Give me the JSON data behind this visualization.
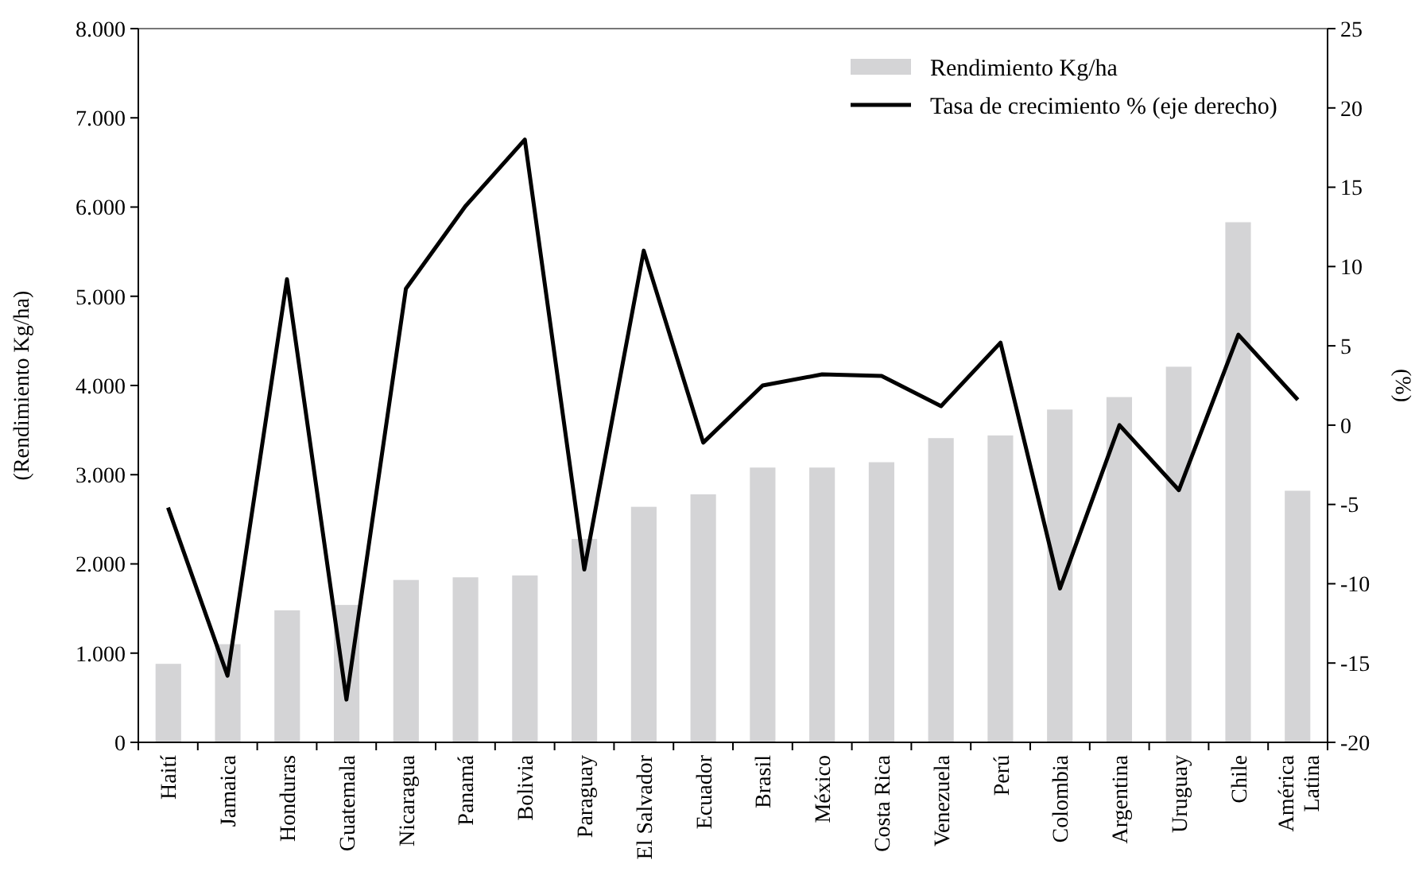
{
  "chart_data": {
    "type": "bar",
    "categories": [
      "Haití",
      "Jamaica",
      "Honduras",
      "Guatemala",
      "Nicaragua",
      "Panamá",
      "Bolivia",
      "Paraguay",
      "El Salvador",
      "Ecuador",
      "Brasil",
      "México",
      "Costa Rica",
      "Venezuela",
      "Perú",
      "Colombia",
      "Argentina",
      "Uruguay",
      "Chile",
      "América Latina"
    ],
    "series": [
      {
        "name": "Rendimiento Kg/ha",
        "color": "#d4d4d6",
        "values": [
          880,
          1100,
          1480,
          1540,
          1820,
          1850,
          1870,
          2280,
          2640,
          2780,
          3080,
          3080,
          3140,
          3410,
          3440,
          3730,
          3870,
          4210,
          5830,
          2820
        ]
      },
      {
        "name": "Tasa de crecimiento % (eje derecho)",
        "type": "line",
        "axis": "y2",
        "color": "#000000",
        "values": [
          -5.2,
          -15.8,
          9.2,
          -17.3,
          8.6,
          13.8,
          18.0,
          -9.1,
          11.0,
          -1.1,
          2.5,
          3.2,
          3.1,
          1.2,
          5.2,
          -10.3,
          0.0,
          -4.1,
          5.7,
          1.6
        ]
      }
    ],
    "ylabel": "(Rendimiento Kg/ha)",
    "y2label": "(%)",
    "ylim": [
      0,
      8000
    ],
    "yticks": [
      {
        "value": 0,
        "label": "0"
      },
      {
        "value": 1000,
        "label": "1.000"
      },
      {
        "value": 2000,
        "label": "2.000"
      },
      {
        "value": 3000,
        "label": "3.000"
      },
      {
        "value": 4000,
        "label": "4.000"
      },
      {
        "value": 5000,
        "label": "5.000"
      },
      {
        "value": 6000,
        "label": "6.000"
      },
      {
        "value": 7000,
        "label": "7.000"
      },
      {
        "value": 8000,
        "label": "8.000"
      }
    ],
    "y2lim": [
      -20,
      25
    ],
    "y2ticks": [
      -20,
      -15,
      -10,
      -5,
      0,
      5,
      10,
      15,
      20,
      25
    ],
    "grid": false,
    "legend": "top right",
    "marker": "none",
    "line_style": "solid"
  }
}
